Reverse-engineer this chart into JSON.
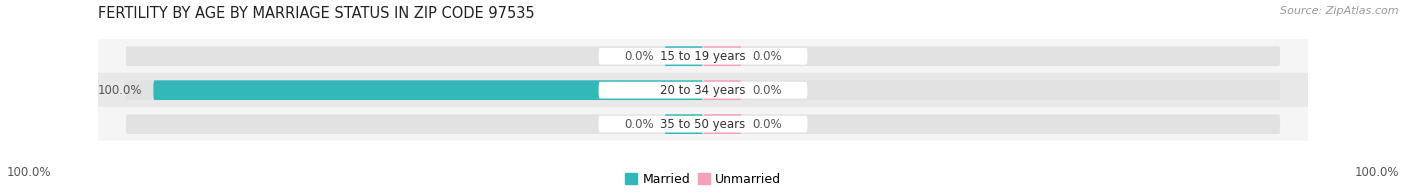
{
  "title": "FERTILITY BY AGE BY MARRIAGE STATUS IN ZIP CODE 97535",
  "source": "Source: ZipAtlas.com",
  "rows": [
    {
      "label": "15 to 19 years",
      "married": 0.0,
      "unmarried": 0.0
    },
    {
      "label": "20 to 34 years",
      "married": 100.0,
      "unmarried": 0.0
    },
    {
      "label": "35 to 50 years",
      "married": 0.0,
      "unmarried": 0.0
    }
  ],
  "married_color": "#32b8b8",
  "unmarried_color": "#f4a0b8",
  "bar_bg_color": "#e2e2e2",
  "row_bg_even": "#f5f5f5",
  "row_bg_odd": "#e8e8e8",
  "bar_height": 0.58,
  "x_left_label": "100.0%",
  "x_right_label": "100.0%",
  "title_fontsize": 10.5,
  "source_fontsize": 8,
  "label_fontsize": 8.5,
  "value_fontsize": 8.5,
  "tick_fontsize": 8.5,
  "legend_fontsize": 9,
  "xlim_left": -110,
  "xlim_right": 110
}
